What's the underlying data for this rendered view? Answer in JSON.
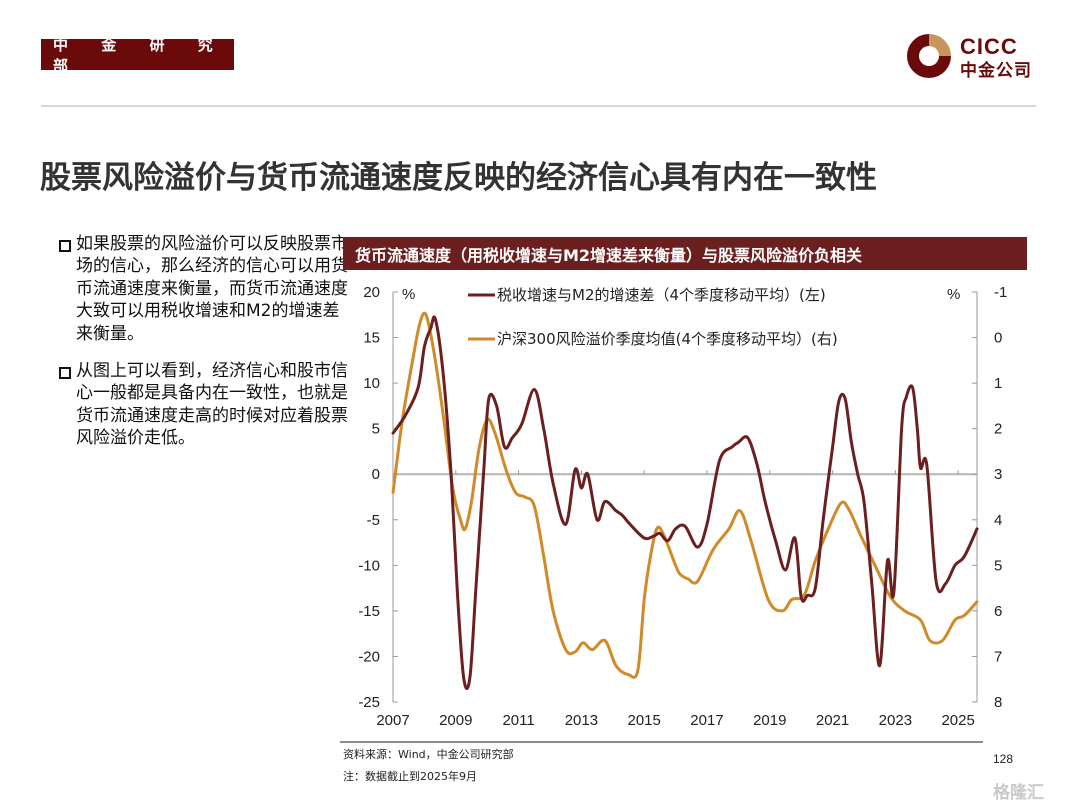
{
  "header": {
    "dept_badge": "中 金 研 究 部",
    "logo_en": "CICC",
    "logo_cn": "中金公司"
  },
  "page_title": "股票风险溢价与货币流通速度反映的经济信心具有内在一致性",
  "bullets": [
    "如果股票的风险溢价可以反映股票市场的信心，那么经济的信心可以用货币流通速度来衡量，而货币流通速度大致可以用税收增速和M2的增速差来衡量。",
    "从图上可以看到，经济信心和股市信心一般都是具备内在一致性，也就是货币流通速度走高的时候对应着股票风险溢价走低。"
  ],
  "footer": {
    "source": "资料来源：Wind，中金公司研究部",
    "note": "注：数据截止到2025年9月",
    "page_number": "128",
    "watermark": "格隆汇"
  },
  "colors": {
    "brand": "#6b0a0a",
    "series_tax_m2": "#6b1f1f",
    "series_erp": "#d08a2a",
    "banner": "#6b1f1f"
  },
  "chart_data": {
    "type": "line",
    "title": "货币流通速度（用税收增速与M2增速差来衡量）与股票风险溢价负相关",
    "left_unit": "%",
    "right_unit": "%",
    "left_ylim": [
      -25,
      20
    ],
    "left_ticks": [
      "20",
      "15",
      "10",
      "5",
      "0",
      "-5",
      "-10",
      "-15",
      "-20",
      "-25"
    ],
    "right_ylim": [
      -1,
      8
    ],
    "right_inverted": true,
    "right_ticks": [
      "-1",
      "0",
      "1",
      "2",
      "3",
      "4",
      "5",
      "6",
      "7",
      "8"
    ],
    "xlim": [
      2007,
      2025.6
    ],
    "x_ticks": [
      "2007",
      "2009",
      "2011",
      "2013",
      "2015",
      "2017",
      "2019",
      "2021",
      "2023",
      "2025"
    ],
    "grid": false,
    "legend_position": "top",
    "series": [
      {
        "name": "税收增速与M2的增速差（4个季度移动平均）(左)",
        "axis": "left",
        "x": [
          2007.0,
          2007.4,
          2007.8,
          2008.0,
          2008.2,
          2008.35,
          2008.6,
          2008.85,
          2009.05,
          2009.25,
          2009.45,
          2009.65,
          2009.9,
          2010.05,
          2010.3,
          2010.55,
          2010.8,
          2011.1,
          2011.5,
          2011.8,
          2012.1,
          2012.5,
          2012.8,
          2013.0,
          2013.2,
          2013.5,
          2013.75,
          2014.1,
          2014.3,
          2014.55,
          2015.0,
          2015.3,
          2015.5,
          2015.75,
          2016.0,
          2016.3,
          2016.7,
          2017.0,
          2017.4,
          2017.8,
          2018.0,
          2018.3,
          2018.6,
          2018.85,
          2019.2,
          2019.5,
          2019.8,
          2020.0,
          2020.2,
          2020.45,
          2020.7,
          2021.0,
          2021.2,
          2021.4,
          2021.6,
          2021.8,
          2022.0,
          2022.25,
          2022.5,
          2022.75,
          2022.95,
          2023.2,
          2023.35,
          2023.55,
          2023.7,
          2023.8,
          2024.0,
          2024.3,
          2024.6,
          2024.9,
          2025.2,
          2025.6
        ],
        "values": [
          4.5,
          6.5,
          9.5,
          14.0,
          16.0,
          17.0,
          11.0,
          0.0,
          -13.0,
          -22.3,
          -22.3,
          -12.0,
          1.0,
          8.3,
          7.5,
          3.0,
          4.0,
          5.5,
          9.3,
          5.0,
          -1.0,
          -5.5,
          0.5,
          -1.5,
          0.0,
          -5.0,
          -3.0,
          -4.0,
          -4.5,
          -5.5,
          -7.0,
          -6.8,
          -6.5,
          -7.3,
          -6.0,
          -5.7,
          -8.0,
          -5.5,
          1.5,
          3.0,
          3.5,
          4.0,
          1.0,
          -3.0,
          -7.5,
          -10.5,
          -7.0,
          -13.5,
          -13.3,
          -12.5,
          -5.0,
          3.0,
          8.0,
          8.3,
          3.5,
          0.0,
          -3.0,
          -12.0,
          -21.0,
          -9.5,
          -13.0,
          5.0,
          8.5,
          9.5,
          5.0,
          0.7,
          1.0,
          -11.8,
          -12.0,
          -10.0,
          -9.0,
          -6.0
        ]
      },
      {
        "name": "沪深300风险溢价季度均值(4个季度移动平均）(右)",
        "axis": "right",
        "x": [
          2007.0,
          2007.3,
          2007.6,
          2007.85,
          2008.05,
          2008.3,
          2008.6,
          2008.9,
          2009.15,
          2009.3,
          2009.5,
          2009.75,
          2010.0,
          2010.25,
          2010.6,
          2010.9,
          2011.2,
          2011.5,
          2011.8,
          2012.1,
          2012.5,
          2012.8,
          2013.05,
          2013.35,
          2013.75,
          2014.1,
          2014.5,
          2014.8,
          2015.0,
          2015.2,
          2015.4,
          2015.6,
          2016.0,
          2016.15,
          2016.4,
          2016.7,
          2017.2,
          2017.7,
          2018.05,
          2018.4,
          2018.95,
          2019.4,
          2019.7,
          2020.1,
          2020.45,
          2020.8,
          2021.25,
          2021.5,
          2021.9,
          2022.35,
          2022.85,
          2023.3,
          2023.8,
          2024.1,
          2024.5,
          2024.9,
          2025.2,
          2025.6
        ],
        "values": [
          3.4,
          1.8,
          0.6,
          -0.3,
          -0.5,
          0.3,
          1.7,
          3.3,
          4.0,
          4.2,
          3.6,
          2.4,
          1.8,
          2.1,
          2.9,
          3.4,
          3.5,
          3.7,
          4.8,
          6.0,
          6.85,
          6.9,
          6.7,
          6.85,
          6.65,
          7.2,
          7.4,
          7.3,
          5.75,
          4.8,
          4.2,
          4.3,
          5.0,
          5.2,
          5.3,
          5.35,
          4.65,
          4.2,
          3.8,
          4.45,
          5.75,
          6.0,
          5.75,
          5.65,
          4.9,
          4.3,
          3.65,
          3.75,
          4.35,
          5.0,
          5.7,
          6.0,
          6.2,
          6.65,
          6.65,
          6.2,
          6.1,
          5.8
        ]
      }
    ]
  }
}
